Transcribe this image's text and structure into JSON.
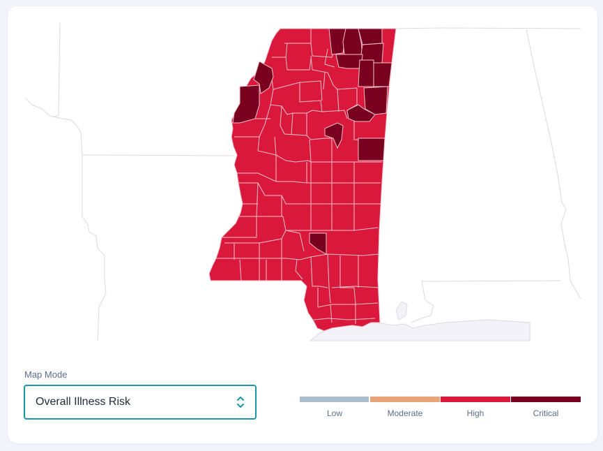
{
  "map_mode": {
    "label": "Map Mode",
    "selected": "Overall Illness Risk"
  },
  "legend": {
    "items": [
      {
        "label": "Low",
        "color": "#aabfcb"
      },
      {
        "label": "Moderate",
        "color": "#e8a477"
      },
      {
        "label": "High",
        "color": "#d9183b"
      },
      {
        "label": "Critical",
        "color": "#7a0020"
      }
    ]
  },
  "map": {
    "region": "Mississippi",
    "fill_high": "#d9183b",
    "fill_critical": "#7a0020",
    "county_stroke": "#f3c3cc",
    "state_outline": "#d9d9e0",
    "water": "#f2f2f8"
  }
}
